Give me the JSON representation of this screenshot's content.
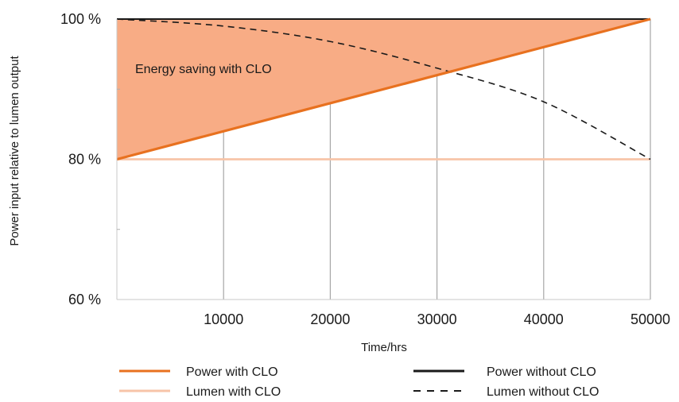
{
  "chart_data": {
    "type": "line",
    "xlabel": "Time/hrs",
    "ylabel": "Power input relative to lumen output",
    "xlim": [
      0,
      50000
    ],
    "ylim": [
      60,
      100
    ],
    "x_ticks": [
      10000,
      20000,
      30000,
      40000,
      50000
    ],
    "x_tick_labels": [
      "10000",
      "20000",
      "30000",
      "40000",
      "50000"
    ],
    "y_ticks": [
      60,
      80,
      100
    ],
    "y_tick_labels": [
      "60 %",
      "80 %",
      "100 %"
    ],
    "grid": "vertical",
    "series": [
      {
        "name": "Power with CLO",
        "style": "solid",
        "color": "#e8711f",
        "x": [
          0,
          50000
        ],
        "y": [
          80,
          100
        ]
      },
      {
        "name": "Power without CLO",
        "style": "solid",
        "color": "#1a1a1a",
        "x": [
          0,
          50000
        ],
        "y": [
          100,
          100
        ]
      },
      {
        "name": "Lumen with CLO",
        "style": "solid",
        "color": "#f7c4a8",
        "x": [
          0,
          50000
        ],
        "y": [
          80,
          80
        ]
      },
      {
        "name": "Lumen without CLO",
        "style": "dashed",
        "color": "#1a1a1a",
        "x": [
          0,
          10000,
          20000,
          30000,
          40000,
          50000
        ],
        "y": [
          100,
          99,
          96.8,
          93,
          88.2,
          80
        ]
      }
    ],
    "shaded_area": {
      "label": "Energy saving with CLO",
      "color": "#f8ac85",
      "between": [
        "Power without CLO",
        "Power with CLO"
      ]
    },
    "legend": {
      "placement": "bottom",
      "columns": 2
    }
  }
}
